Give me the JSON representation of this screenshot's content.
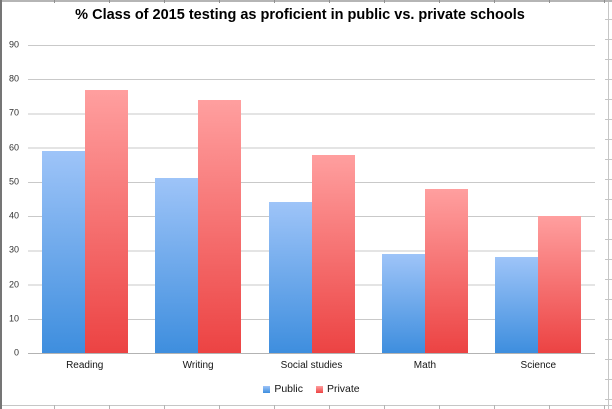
{
  "chart_data": {
    "type": "bar",
    "title": "% Class of 2015 testing as proficient in public vs. private schools",
    "categories": [
      "Reading",
      "Writing",
      "Social studies",
      "Math",
      "Science"
    ],
    "series": [
      {
        "name": "Public",
        "values": [
          59,
          51,
          44,
          29,
          28
        ],
        "color_top": "#9ec4f8",
        "color_bottom": "#3e8ede"
      },
      {
        "name": "Private",
        "values": [
          77,
          74,
          58,
          48,
          40
        ],
        "color_top": "#ff9f9f",
        "color_bottom": "#ec4343"
      }
    ],
    "xlabel": "",
    "ylabel": "",
    "ylim": [
      0,
      90
    ],
    "ytick_step": 10,
    "grid": true,
    "legend_position": "bottom",
    "colors": {
      "gridline": "#c9c9c9",
      "axis_baseline": "#b3b3b3",
      "title_text": "#000000",
      "tick_text": "#333333"
    }
  }
}
